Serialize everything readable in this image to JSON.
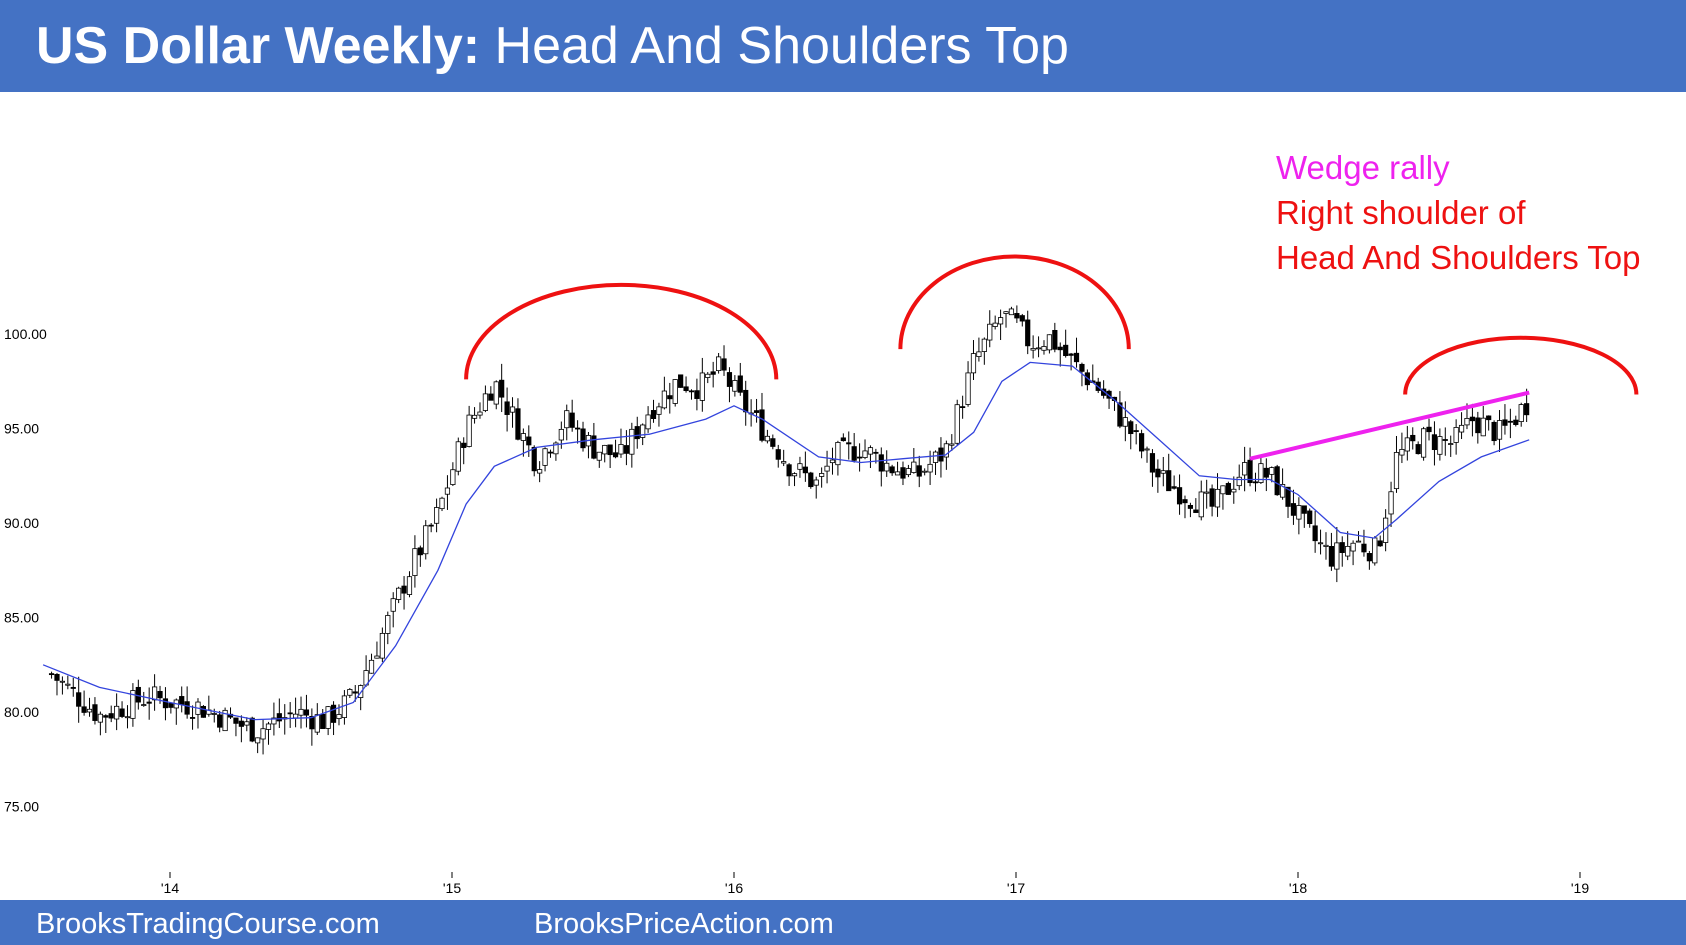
{
  "header": {
    "title_bold": "US Dollar Weekly:",
    "title_rest": " Head And Shoulders Top"
  },
  "annotations": {
    "line1": "Wedge rally",
    "line2": "Right shoulder of",
    "line3": "Head And Shoulders Top"
  },
  "footer": {
    "left": "BrooksTradingCourse.com",
    "right": "BrooksPriceAction.com"
  },
  "colors": {
    "header_bg": "#4472C4",
    "ema": "#3344DD",
    "arc": "#EE1111",
    "wedge": "#EE22EE",
    "annotation_red": "#EE1111"
  },
  "chart_data": {
    "type": "candlestick",
    "title": "",
    "xlabel": "",
    "ylabel": "",
    "ylim": [
      72.5,
      108.5
    ],
    "yticks": [
      "100.00",
      "95.00",
      "90.00",
      "85.00",
      "80.00",
      "75.00"
    ],
    "ytick_values": [
      100,
      95,
      90,
      85,
      80,
      75
    ],
    "xticks": [
      "'14",
      "'15",
      "'16",
      "'17",
      "'18",
      "'19"
    ],
    "xtick_years": [
      2014,
      2015,
      2016,
      2017,
      2018,
      2019
    ],
    "x_range_years": [
      2013.55,
      2019.25
    ],
    "series": [
      {
        "name": "",
        "note": "approximate weekly closes read from the chart",
        "x": [
          2013.58,
          2013.75,
          2013.92,
          2014.1,
          2014.3,
          2014.45,
          2014.55,
          2014.65,
          2014.75,
          2014.85,
          2014.95,
          2015.05,
          2015.15,
          2015.22,
          2015.3,
          2015.4,
          2015.5,
          2015.6,
          2015.7,
          2015.8,
          2015.88,
          2015.95,
          2016.02,
          2016.1,
          2016.2,
          2016.3,
          2016.35,
          2016.45,
          2016.55,
          2016.65,
          2016.75,
          2016.85,
          2016.95,
          2017.0,
          2017.05,
          2017.12,
          2017.2,
          2017.3,
          2017.4,
          2017.5,
          2017.6,
          2017.7,
          2017.8,
          2017.9,
          2017.95,
          2018.05,
          2018.12,
          2018.2,
          2018.28,
          2018.35,
          2018.45,
          2018.55,
          2018.62,
          2018.72,
          2018.82
        ],
        "close": [
          82.0,
          79.8,
          80.8,
          80.3,
          79.0,
          80.0,
          79.5,
          80.8,
          84.0,
          87.5,
          90.5,
          95.0,
          97.5,
          95.5,
          93.2,
          95.5,
          94.0,
          93.5,
          96.0,
          97.5,
          97.2,
          98.2,
          96.5,
          95.0,
          93.0,
          92.0,
          93.5,
          94.0,
          93.0,
          92.5,
          93.8,
          98.5,
          101.0,
          100.5,
          99.5,
          99.8,
          98.5,
          97.0,
          95.0,
          92.5,
          91.5,
          90.8,
          92.8,
          92.5,
          91.5,
          89.2,
          88.2,
          89.0,
          88.5,
          93.5,
          94.5,
          94.2,
          95.5,
          94.7,
          96.5
        ]
      },
      {
        "name": "",
        "note": "moving average line",
        "x": [
          2013.55,
          2013.75,
          2014.0,
          2014.3,
          2014.5,
          2014.65,
          2014.8,
          2014.95,
          2015.05,
          2015.15,
          2015.3,
          2015.5,
          2015.7,
          2015.9,
          2016.0,
          2016.1,
          2016.3,
          2016.45,
          2016.6,
          2016.75,
          2016.85,
          2016.95,
          2017.05,
          2017.2,
          2017.35,
          2017.5,
          2017.65,
          2017.78,
          2017.9,
          2018.0,
          2018.15,
          2018.27,
          2018.35,
          2018.5,
          2018.65,
          2018.82
        ],
        "value": [
          82.5,
          81.3,
          80.5,
          79.6,
          79.7,
          80.5,
          83.5,
          87.5,
          91.0,
          93.0,
          94.0,
          94.4,
          94.7,
          95.5,
          96.2,
          95.5,
          93.5,
          93.2,
          93.4,
          93.6,
          94.8,
          97.5,
          98.5,
          98.3,
          96.5,
          94.5,
          92.5,
          92.3,
          92.3,
          91.5,
          89.5,
          89.2,
          90.2,
          92.2,
          93.5,
          94.4
        ]
      }
    ],
    "annotation_lines": [
      {
        "name": "wedge",
        "x": [
          2017.83,
          2018.82
        ],
        "y": [
          93.4,
          96.9
        ]
      }
    ],
    "arcs": [
      {
        "name": "left-shoulder",
        "x_start": 2015.05,
        "x_end": 2016.15,
        "y_base": 97.6,
        "y_peak": 102.6
      },
      {
        "name": "head",
        "x_start": 2016.59,
        "x_end": 2017.4,
        "y_base": 99.2,
        "y_peak": 104.1
      },
      {
        "name": "right-shoulder",
        "x_start": 2018.38,
        "x_end": 2019.2,
        "y_base": 96.8,
        "y_peak": 99.8
      }
    ]
  }
}
